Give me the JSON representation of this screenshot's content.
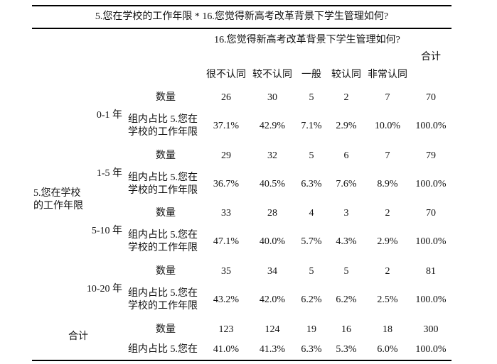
{
  "title": "5.您在学校的工作年限 * 16.您觉得新高考改革背景下学生管理如何?",
  "header": {
    "group": "16.您觉得新高考改革背景下学生管理如何?",
    "total": "合计",
    "columns": [
      "很不认同",
      "较不认同",
      "一般",
      "较认同",
      "非常认同"
    ]
  },
  "row_header": "5.您在学校的工作年限",
  "groups": [
    {
      "label": "0-1 年",
      "rows": [
        {
          "label": "数量",
          "cells": [
            26,
            30,
            5,
            2,
            7,
            70
          ]
        },
        {
          "label": "组内占比 5.您在学校的工作年限",
          "cells": [
            "37.1%",
            "42.9%",
            "7.1%",
            "2.9%",
            "10.0%",
            "100.0%"
          ]
        }
      ]
    },
    {
      "label": "1-5 年",
      "rows": [
        {
          "label": "数量",
          "cells": [
            29,
            32,
            5,
            6,
            7,
            79
          ]
        },
        {
          "label": "组内占比 5.您在学校的工作年限",
          "cells": [
            "36.7%",
            "40.5%",
            "6.3%",
            "7.6%",
            "8.9%",
            "100.0%"
          ]
        }
      ]
    },
    {
      "label": "5-10 年",
      "rows": [
        {
          "label": "数量",
          "cells": [
            33,
            28,
            4,
            3,
            2,
            70
          ]
        },
        {
          "label": "组内占比 5.您在学校的工作年限",
          "cells": [
            "47.1%",
            "40.0%",
            "5.7%",
            "4.3%",
            "2.9%",
            "100.0%"
          ]
        }
      ]
    },
    {
      "label": "10-20 年",
      "rows": [
        {
          "label": "数量",
          "cells": [
            35,
            34,
            5,
            5,
            2,
            81
          ]
        },
        {
          "label": "组内占比 5.您在学校的工作年限",
          "cells": [
            "43.2%",
            "42.0%",
            "6.2%",
            "6.2%",
            "2.5%",
            "100.0%"
          ]
        }
      ]
    },
    {
      "label": "合计",
      "rows": [
        {
          "label": "数量",
          "cells": [
            123,
            124,
            19,
            16,
            18,
            300
          ]
        },
        {
          "label": "组内占比 5.您在",
          "cells": [
            "41.0%",
            "41.3%",
            "6.3%",
            "5.3%",
            "6.0%",
            "100.0%"
          ]
        }
      ]
    }
  ]
}
